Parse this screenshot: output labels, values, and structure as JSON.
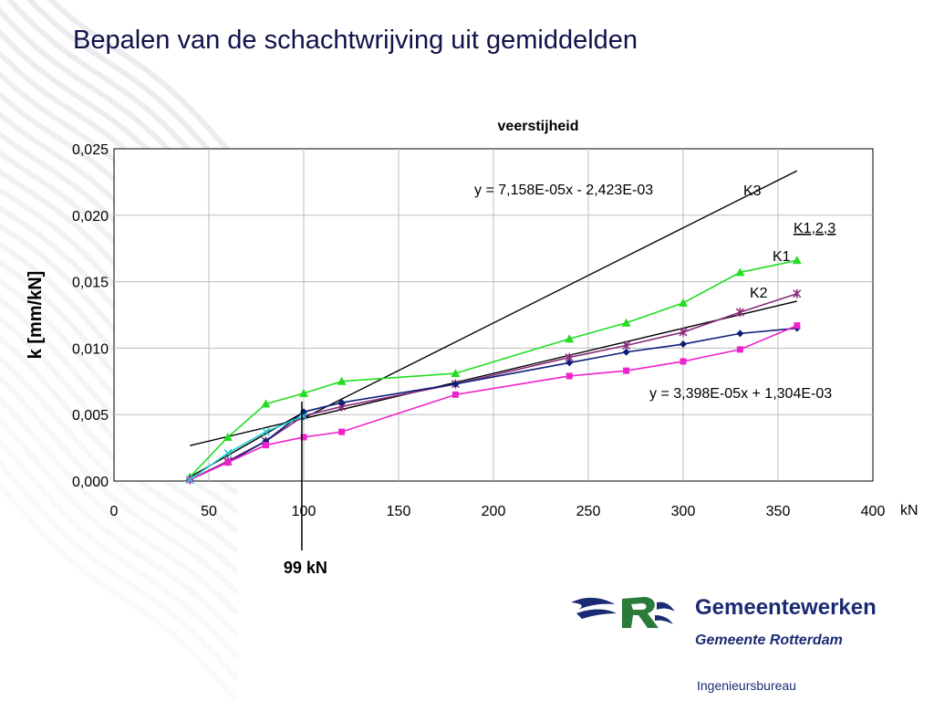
{
  "slide": {
    "title": "Bepalen van de schachtwrijving uit gemiddelden",
    "org_name": "Gemeentewerken",
    "org_sub": "Gemeente Rotterdam",
    "org_dept": "Ingenieursbureau"
  },
  "colors": {
    "title": "#10124a",
    "org": "#1b2b73",
    "bg_waves": "#e9e9ee"
  },
  "chart_data": {
    "type": "line",
    "title": "veerstijheid",
    "xlabel": "kN",
    "ylabel": "k  [mm/kN]",
    "xlim": [
      0,
      400
    ],
    "ylim": [
      0,
      0.025
    ],
    "x_ticks": [
      0,
      50,
      100,
      150,
      200,
      250,
      300,
      350,
      400
    ],
    "x_tick_labels": [
      "0",
      "50",
      "100",
      "150",
      "200",
      "250",
      "300",
      "350",
      "400"
    ],
    "y_ticks": [
      0,
      0.005,
      0.01,
      0.015,
      0.02,
      0.025
    ],
    "y_tick_labels": [
      "0,000",
      "0,005",
      "0,010",
      "0,015",
      "0,020",
      "0,025"
    ],
    "grid": true,
    "legend": "none",
    "series": [
      {
        "marker": "triangle",
        "color": "#22dd22",
        "points": [
          [
            40,
            0.0003
          ],
          [
            60,
            0.0033
          ],
          [
            80,
            0.0058
          ],
          [
            100,
            0.0066
          ],
          [
            120,
            0.0075
          ],
          [
            180,
            0.0081
          ],
          [
            240,
            0.0107
          ],
          [
            270,
            0.0119
          ],
          [
            300,
            0.0134
          ],
          [
            330,
            0.0157
          ],
          [
            360,
            0.0166
          ]
        ]
      },
      {
        "marker": "star",
        "color": "#8a2b7a",
        "points": [
          [
            40,
            0.0001
          ],
          [
            60,
            0.0015
          ],
          [
            80,
            0.003
          ],
          [
            100,
            0.0049
          ],
          [
            120,
            0.0056
          ],
          [
            180,
            0.0073
          ],
          [
            240,
            0.0093
          ],
          [
            270,
            0.0102
          ],
          [
            300,
            0.0112
          ],
          [
            330,
            0.0127
          ],
          [
            360,
            0.0141
          ]
        ]
      },
      {
        "marker": "diamond",
        "color": "#0d1e7a",
        "points": [
          [
            40,
            0.0001
          ],
          [
            60,
            0.0014
          ],
          [
            80,
            0.003
          ],
          [
            100,
            0.0052
          ],
          [
            120,
            0.0059
          ],
          [
            180,
            0.0073
          ],
          [
            240,
            0.0089
          ],
          [
            270,
            0.0097
          ],
          [
            300,
            0.0103
          ],
          [
            330,
            0.0111
          ],
          [
            360,
            0.0115
          ]
        ]
      },
      {
        "marker": "square",
        "color": "#ee22cc",
        "points": [
          [
            40,
            0.0001
          ],
          [
            60,
            0.0014
          ],
          [
            80,
            0.0027
          ],
          [
            100,
            0.0033
          ],
          [
            120,
            0.0037
          ],
          [
            180,
            0.0065
          ],
          [
            240,
            0.0079
          ],
          [
            270,
            0.0083
          ],
          [
            300,
            0.009
          ],
          [
            330,
            0.0099
          ],
          [
            360,
            0.0117
          ]
        ]
      },
      {
        "marker": "x",
        "color": "#22cccc",
        "points": [
          [
            40,
            0.0001
          ],
          [
            60,
            0.0021
          ],
          [
            80,
            0.0037
          ],
          [
            100,
            0.0049
          ]
        ]
      }
    ],
    "trendlines": [
      {
        "name": "K3",
        "equation": "y = 7,158E-05x - 2,423E-03",
        "slope": 7.158e-05,
        "intercept": -0.002423,
        "x_range": [
          99,
          360
        ]
      },
      {
        "equation": "y = 3,398E-05x + 1,304E-03",
        "slope": 3.398e-05,
        "intercept": 0.001304,
        "x_range": [
          40,
          360
        ]
      },
      {
        "segment": [
          [
            40,
            0.0003
          ],
          [
            99,
            0.0051
          ]
        ]
      }
    ],
    "annotations": [
      {
        "text": "K1,2,3",
        "underline": true
      },
      {
        "text": "K1"
      },
      {
        "text": "K2"
      },
      {
        "text": "99 kN",
        "x": 99
      }
    ]
  }
}
